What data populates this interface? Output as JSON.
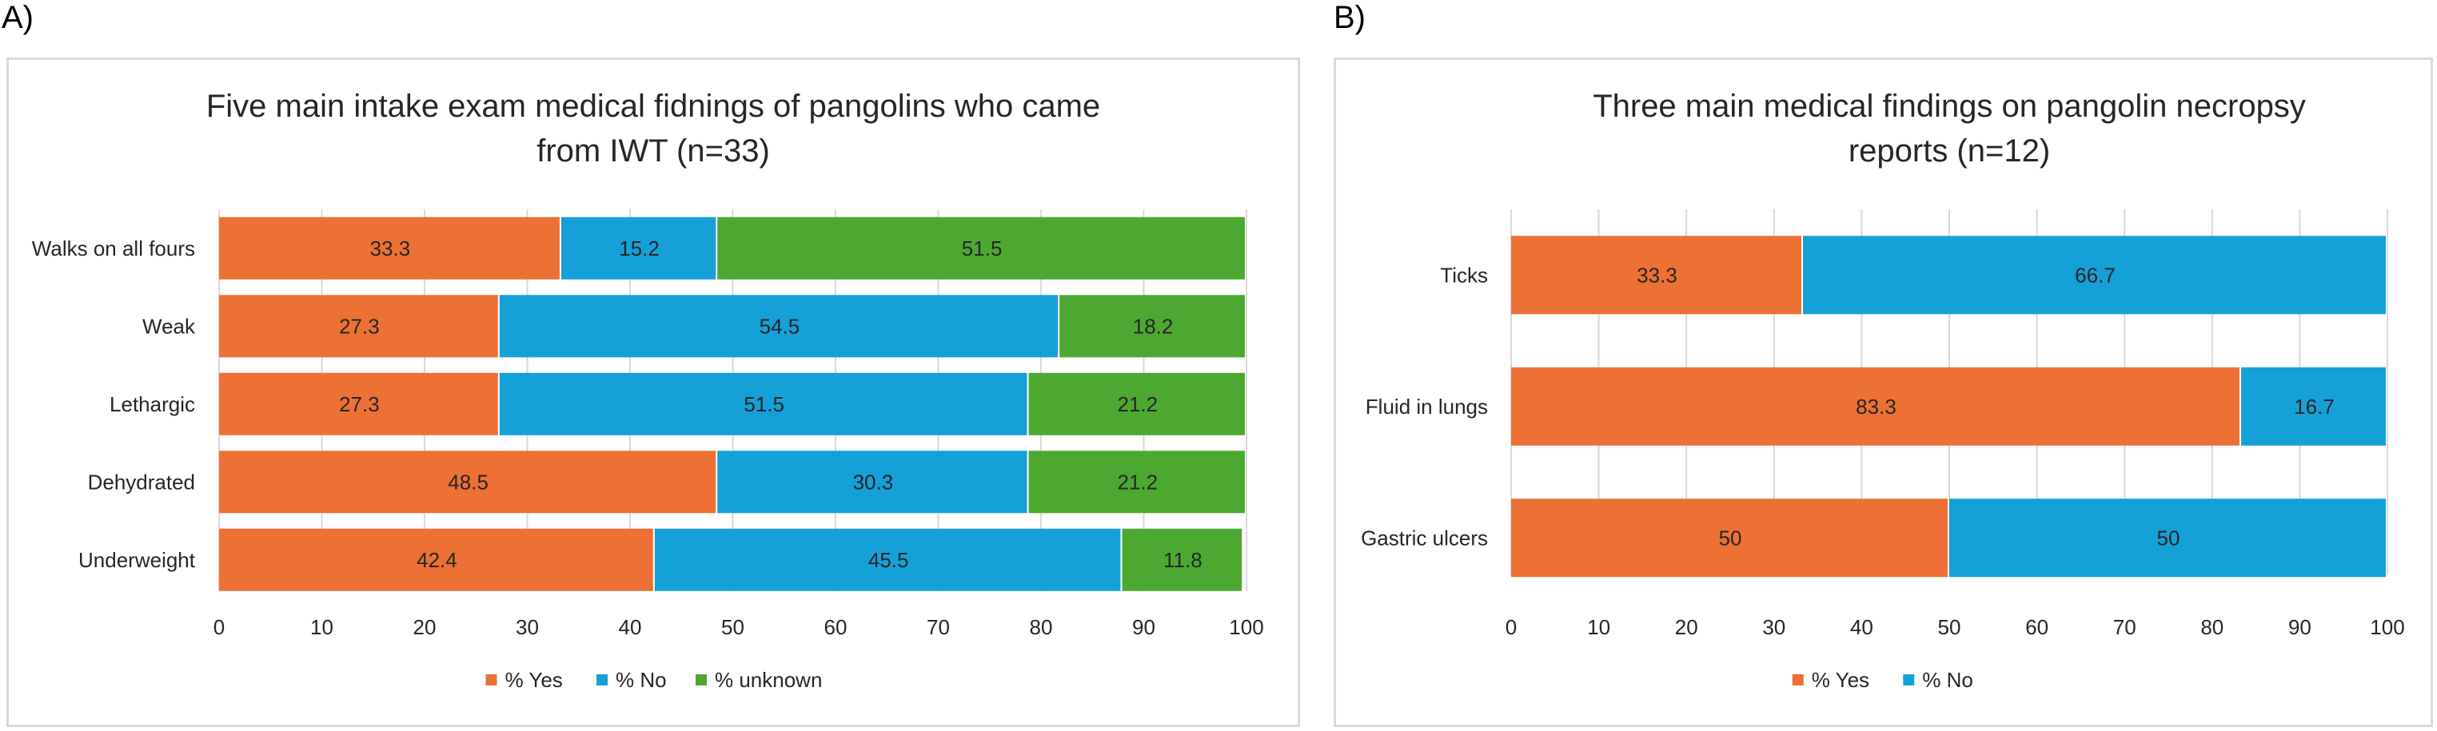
{
  "panels": {
    "a_label": "A)",
    "b_label": "B)"
  },
  "colors": {
    "yes": "#ED7134",
    "no": "#15A0D8",
    "unknown": "#4DA832",
    "grid": "#d9d9d9",
    "text": "#262626"
  },
  "chart_data": [
    {
      "type": "bar",
      "orientation": "horizontal",
      "stacked": true,
      "title_lines": [
        "Five main intake exam medical fidnings of pangolins who came",
        "from IWT (n=33)"
      ],
      "categories": [
        "Walks on all fours",
        "Weak",
        "Lethargic",
        "Dehydrated",
        "Underweight"
      ],
      "series": [
        {
          "name": "% Yes",
          "color_key": "yes",
          "values": [
            33.3,
            27.3,
            27.3,
            48.5,
            42.4
          ]
        },
        {
          "name": "% No",
          "color_key": "no",
          "values": [
            15.2,
            54.5,
            51.5,
            30.3,
            45.5
          ]
        },
        {
          "name": "% unknown",
          "color_key": "unknown",
          "values": [
            51.5,
            18.2,
            21.2,
            21.2,
            11.8
          ]
        }
      ],
      "xlim": [
        0,
        100
      ],
      "xticks": [
        0,
        10,
        20,
        30,
        40,
        50,
        60,
        70,
        80,
        90,
        100
      ],
      "grid": true,
      "legend_position": "bottom"
    },
    {
      "type": "bar",
      "orientation": "horizontal",
      "stacked": true,
      "title_lines": [
        "Three main medical findings on pangolin necropsy",
        "reports (n=12)"
      ],
      "categories": [
        "Ticks",
        "Fluid in lungs",
        "Gastric ulcers"
      ],
      "series": [
        {
          "name": "% Yes",
          "color_key": "yes",
          "values": [
            33.3,
            83.3,
            50
          ]
        },
        {
          "name": "% No",
          "color_key": "no",
          "values": [
            66.7,
            16.7,
            50
          ]
        }
      ],
      "xlim": [
        0,
        100
      ],
      "xticks": [
        0,
        10,
        20,
        30,
        40,
        50,
        60,
        70,
        80,
        90,
        100
      ],
      "grid": true,
      "legend_position": "bottom"
    }
  ]
}
